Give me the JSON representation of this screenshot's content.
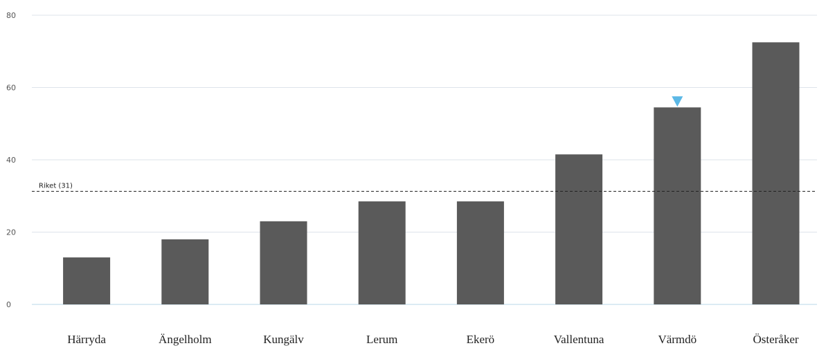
{
  "chart_data": {
    "type": "bar",
    "categories": [
      "Härryda",
      "Ängelholm",
      "Kungälv",
      "Lerum",
      "Ekerö",
      "Vallentuna",
      "Värmdö",
      "Österåker"
    ],
    "values": [
      13,
      18,
      23,
      28.5,
      28.5,
      41.5,
      54.5,
      72.5
    ],
    "ylim": [
      0,
      80
    ],
    "yticks": [
      0,
      20,
      40,
      60,
      80
    ],
    "grid": true,
    "reference_line": {
      "label": "Riket (31)",
      "value": 31.3
    },
    "highlight": {
      "category": "Värmdö",
      "marker": "down-triangle"
    },
    "colors": {
      "bar": "#5a5a5a",
      "grid": "#dde3ea",
      "axis": "#b9d7ea",
      "marker": "#5bb8e6",
      "reference": "#222222"
    }
  }
}
